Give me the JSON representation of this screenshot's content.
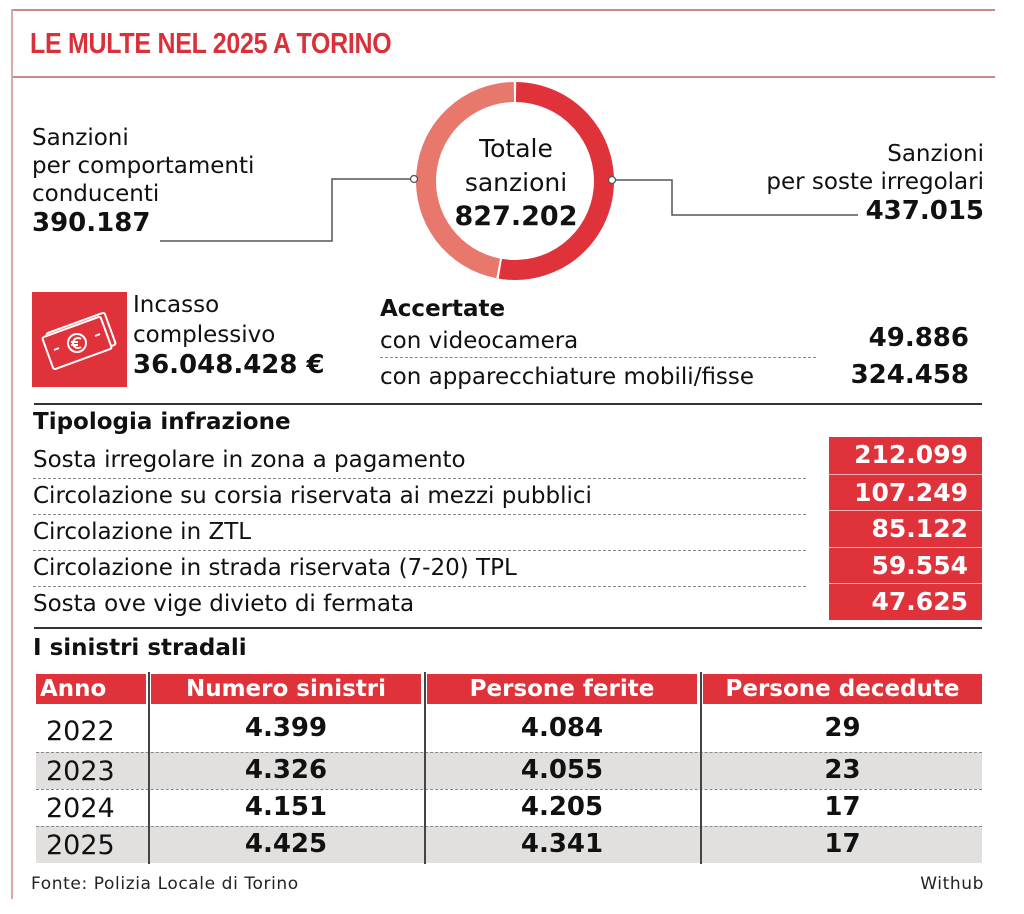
{
  "title": "LE MULTE NEL 2025 A TORINO",
  "colors": {
    "accent": "#e0323a",
    "segment_light": "#e8776c",
    "segment_dark": "#e0323a"
  },
  "chart_data": {
    "type": "pie",
    "title": "Totale sanzioni",
    "total": 827202,
    "slices": [
      {
        "label": "Sanzioni per soste irregolari",
        "value": 437015
      },
      {
        "label": "Sanzioni per comportamenti conducenti",
        "value": 390187
      }
    ]
  },
  "donut": {
    "center_line1": "Totale",
    "center_line2": "sanzioni",
    "center_value": "827.202"
  },
  "left_callout": {
    "line1": "Sanzioni",
    "line2": "per comportamenti",
    "line3": "conducenti",
    "value": "390.187"
  },
  "right_callout": {
    "line1": "Sanzioni",
    "line2": "per soste irregolari",
    "value": "437.015"
  },
  "incasso": {
    "icon": "money-euro-icon",
    "line1": "Incasso",
    "line2": "complessivo",
    "value": "36.048.428 €"
  },
  "accertate": {
    "heading": "Accertate",
    "rows": [
      {
        "label": "con videocamera",
        "value": "49.886"
      },
      {
        "label": "con apparecchiature mobili/fisse",
        "value": "324.458"
      }
    ]
  },
  "tipologia": {
    "heading": "Tipologia infrazione",
    "rows": [
      {
        "label": "Sosta irregolare in zona a pagamento",
        "value": "212.099"
      },
      {
        "label": "Circolazione su corsia riservata ai mezzi pubblici",
        "value": "107.249"
      },
      {
        "label": "Circolazione in ZTL",
        "value": "85.122"
      },
      {
        "label": "Circolazione in strada riservata (7-20) TPL",
        "value": "59.554"
      },
      {
        "label": "Sosta ove vige divieto di fermata",
        "value": "47.625"
      }
    ]
  },
  "sinistri": {
    "heading": "I sinistri stradali",
    "columns": [
      "Anno",
      "Numero sinistri",
      "Persone ferite",
      "Persone decedute"
    ],
    "rows": [
      [
        "2022",
        "4.399",
        "4.084",
        "29"
      ],
      [
        "2023",
        "4.326",
        "4.055",
        "23"
      ],
      [
        "2024",
        "4.151",
        "4.205",
        "17"
      ],
      [
        "2025",
        "4.425",
        "4.341",
        "17"
      ]
    ]
  },
  "footer": {
    "source": "Fonte: Polizia Locale di Torino",
    "credit": "Withub"
  }
}
